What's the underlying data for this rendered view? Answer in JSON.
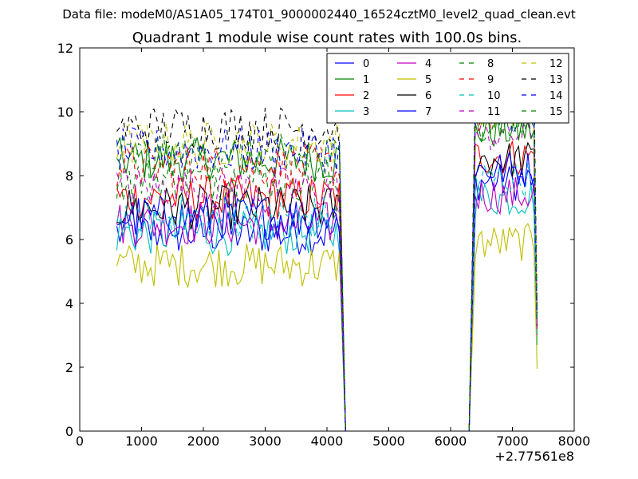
{
  "suptitle": "Data file: modeM0/AS1A05_174T01_9000002440_16524cztM0_level2_quad_clean.evt",
  "chart_data": {
    "type": "line",
    "title": "Quadrant 1 module wise count rates with 100.0s bins.",
    "xlabel": "",
    "ylabel": "",
    "xlim": [
      0,
      8000
    ],
    "ylim": [
      0,
      12
    ],
    "x_offset_label": "+2.77561e8",
    "xticks": [
      0,
      1000,
      2000,
      3000,
      4000,
      5000,
      6000,
      7000,
      8000
    ],
    "yticks": [
      0,
      2,
      4,
      6,
      8,
      10,
      12
    ],
    "legend_position": "top-right",
    "legend_columns": 4,
    "segments": [
      {
        "x_start": 600,
        "x_end": 4200
      },
      {
        "x_start": 6400,
        "x_end": 7400
      }
    ],
    "gap": {
      "x_start": 4300,
      "x_end": 6300,
      "value": 0
    },
    "series": [
      {
        "name": "0",
        "color": "#0000ff",
        "dash": "solid",
        "level": 6.2,
        "segment2_level": 7.8,
        "last_value": 3.0
      },
      {
        "name": "1",
        "color": "#008000",
        "dash": "solid",
        "level": 8.5,
        "segment2_level": 9.4,
        "last_value": 3.2
      },
      {
        "name": "2",
        "color": "#ff0000",
        "dash": "solid",
        "level": 7.3,
        "segment2_level": 8.6,
        "last_value": 3.1
      },
      {
        "name": "3",
        "color": "#00bfbf",
        "dash": "solid",
        "level": 6.2,
        "segment2_level": 7.3,
        "last_value": 2.7
      },
      {
        "name": "4",
        "color": "#bf00bf",
        "dash": "solid",
        "level": 6.5,
        "segment2_level": 7.4,
        "last_value": 3.0
      },
      {
        "name": "5",
        "color": "#bfbf00",
        "dash": "solid",
        "level": 5.2,
        "segment2_level": 5.9,
        "last_value": 1.95
      },
      {
        "name": "6",
        "color": "#000000",
        "dash": "solid",
        "level": 7.0,
        "segment2_level": 8.5,
        "last_value": 3.3
      },
      {
        "name": "7",
        "color": "#0000ff",
        "dash": "solid",
        "level": 6.7,
        "segment2_level": 8.2,
        "last_value": 3.4
      },
      {
        "name": "8",
        "color": "#008000",
        "dash": "dashed",
        "level": 7.9,
        "segment2_level": 9.6,
        "last_value": 3.5
      },
      {
        "name": "9",
        "color": "#ff0000",
        "dash": "dashed",
        "level": 8.3,
        "segment2_level": 9.9,
        "last_value": 3.4
      },
      {
        "name": "10",
        "color": "#00bfbf",
        "dash": "dashed",
        "level": 6.7,
        "segment2_level": 7.9,
        "last_value": 3.0
      },
      {
        "name": "11",
        "color": "#bf00bf",
        "dash": "dashed",
        "level": 7.6,
        "segment2_level": 9.3,
        "last_value": 3.3
      },
      {
        "name": "12",
        "color": "#bfbf00",
        "dash": "dashed",
        "level": 9.0,
        "segment2_level": 10.1,
        "last_value": 3.6
      },
      {
        "name": "13",
        "color": "#000000",
        "dash": "dashed",
        "level": 9.5,
        "segment2_level": 10.3,
        "last_value": 3.7
      },
      {
        "name": "14",
        "color": "#0000ff",
        "dash": "dashed",
        "level": 8.8,
        "segment2_level": 9.9,
        "last_value": 3.6
      },
      {
        "name": "15",
        "color": "#008000",
        "dash": "dashed",
        "level": 8.6,
        "segment2_level": 9.7,
        "last_value": 3.5
      }
    ]
  }
}
